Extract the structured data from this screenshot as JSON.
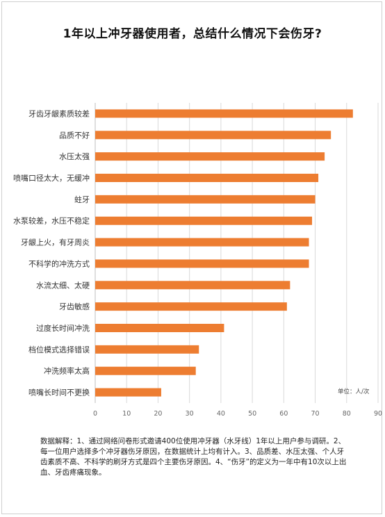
{
  "title": "1年以上冲牙器使用者，总结什么情况下会伤牙?",
  "unit_label": "单位：人/次",
  "notes": "数据解释：1、通过网络问卷形式邀请400位使用冲牙器（水牙线）1年以上用户参与调研。2、每一位用户选择多个冲牙器伤牙原因，在数据统计上均有计入。3、品质差、水压太强、个人牙齿素质不高、不科学的刷牙方式是四个主要伤牙原因。4、“伤牙”的定义为一年中有10次以上出血、牙齿疼痛现象。",
  "colors": {
    "bar": "#ED7D31",
    "grid": "#D9D9D9",
    "axis": "#BFBFBF"
  },
  "chart_data": {
    "type": "bar",
    "orientation": "horizontal",
    "title": "1年以上冲牙器使用者，总结什么情况下会伤牙?",
    "categories": [
      "牙齿牙龈素质较差",
      "品质不好",
      "水压太强",
      "喷嘴口径太大，无缓冲",
      "蛀牙",
      "水泵较差，水压不稳定",
      "牙龈上火，有牙周炎",
      "不科学的冲洗方式",
      "水流太细、太硬",
      "牙齿敏感",
      "过度长时间冲洗",
      "档位模式选择错误",
      "冲洗频率太高",
      "喷嘴长时间不更换"
    ],
    "values": [
      82,
      75,
      73,
      71,
      70,
      69,
      68,
      68,
      62,
      61,
      41,
      33,
      32,
      21
    ],
    "xlim": [
      0,
      90
    ],
    "xticks": [
      0,
      10,
      20,
      30,
      40,
      50,
      60,
      70,
      80,
      90
    ],
    "grid": true,
    "legend": "none"
  }
}
